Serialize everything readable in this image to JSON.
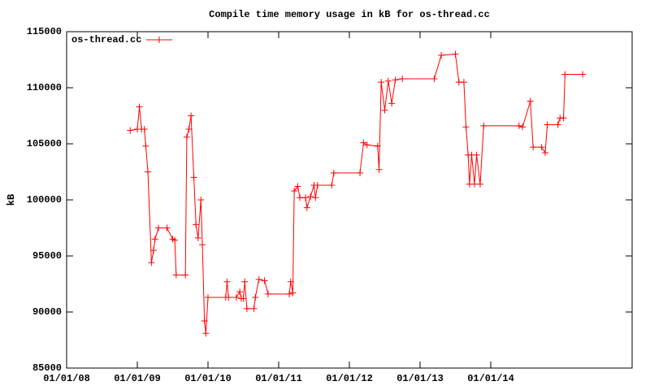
{
  "chart_data": {
    "type": "line",
    "title": "Compile time memory usage in kB for os-thread.cc",
    "y_label": "kB",
    "xlim": [
      2008,
      2016
    ],
    "xticks": [
      {
        "value": 2008,
        "label": "01/01/08"
      },
      {
        "value": 2009,
        "label": "01/01/09"
      },
      {
        "value": 2010,
        "label": "01/01/10"
      },
      {
        "value": 2011,
        "label": "01/01/11"
      },
      {
        "value": 2012,
        "label": "01/01/12"
      },
      {
        "value": 2013,
        "label": "01/01/13"
      },
      {
        "value": 2014,
        "label": "01/01/14"
      }
    ],
    "ylim": [
      85000,
      115000
    ],
    "yticks": [
      85000,
      90000,
      95000,
      100000,
      105000,
      110000,
      115000
    ],
    "legend": "top-left",
    "series": [
      {
        "name": "os-thread.cc",
        "color": "#ff0000",
        "x": [
          2008.9,
          2009.0,
          2009.03,
          2009.06,
          2009.1,
          2009.12,
          2009.15,
          2009.2,
          2009.23,
          2009.25,
          2009.3,
          2009.42,
          2009.5,
          2009.53,
          2009.55,
          2009.68,
          2009.7,
          2009.73,
          2009.76,
          2009.8,
          2009.83,
          2009.86,
          2009.9,
          2009.92,
          2009.95,
          2009.97,
          2010.0,
          2010.25,
          2010.27,
          2010.29,
          2010.4,
          2010.45,
          2010.47,
          2010.5,
          2010.52,
          2010.55,
          2010.65,
          2010.67,
          2010.72,
          2010.8,
          2010.85,
          2011.15,
          2011.17,
          2011.2,
          2011.22,
          2011.27,
          2011.3,
          2011.38,
          2011.4,
          2011.45,
          2011.5,
          2011.52,
          2011.55,
          2011.75,
          2011.78,
          2012.15,
          2012.2,
          2012.25,
          2012.4,
          2012.42,
          2012.45,
          2012.5,
          2012.55,
          2012.6,
          2012.65,
          2012.75,
          2013.2,
          2013.3,
          2013.5,
          2013.55,
          2013.62,
          2013.65,
          2013.68,
          2013.7,
          2013.73,
          2013.77,
          2013.8,
          2013.85,
          2013.9,
          2014.4,
          2014.45,
          2014.56,
          2014.6,
          2014.72,
          2014.77,
          2014.8,
          2014.95,
          2014.98,
          2015.03,
          2015.05,
          2015.3
        ],
        "values": [
          106200,
          106300,
          108300,
          106300,
          106300,
          104800,
          102500,
          94400,
          95500,
          96500,
          97500,
          97500,
          96500,
          96400,
          93300,
          93300,
          105600,
          106300,
          107500,
          102000,
          97800,
          96600,
          100000,
          96000,
          89200,
          88100,
          91300,
          91300,
          92700,
          91300,
          91300,
          91800,
          91200,
          91200,
          92700,
          90300,
          90300,
          91300,
          92900,
          92800,
          91600,
          91600,
          92700,
          91700,
          100800,
          101200,
          100200,
          100200,
          99300,
          100300,
          101300,
          100200,
          101300,
          101300,
          102400,
          102400,
          105100,
          104900,
          104800,
          102700,
          110500,
          108000,
          110600,
          108600,
          110700,
          110800,
          110800,
          112900,
          113000,
          110500,
          110500,
          106500,
          104000,
          101400,
          104000,
          101400,
          104000,
          101400,
          106600,
          106600,
          106500,
          108800,
          104700,
          104700,
          104200,
          106700,
          106700,
          107300,
          107300,
          111200,
          111200
        ]
      }
    ]
  }
}
